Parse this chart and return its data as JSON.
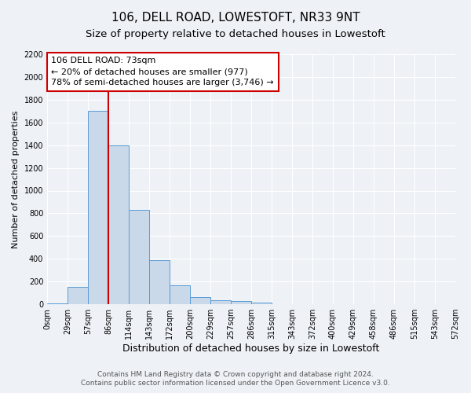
{
  "title": "106, DELL ROAD, LOWESTOFT, NR33 9NT",
  "subtitle": "Size of property relative to detached houses in Lowestoft",
  "xlabel": "Distribution of detached houses by size in Lowestoft",
  "ylabel": "Number of detached properties",
  "bar_values": [
    10,
    155,
    1700,
    1400,
    830,
    390,
    165,
    65,
    35,
    30,
    15,
    0,
    0,
    0,
    0,
    0,
    0,
    0,
    0,
    0
  ],
  "bin_labels": [
    "0sqm",
    "29sqm",
    "57sqm",
    "86sqm",
    "114sqm",
    "143sqm",
    "172sqm",
    "200sqm",
    "229sqm",
    "257sqm",
    "286sqm",
    "315sqm",
    "343sqm",
    "372sqm",
    "400sqm",
    "429sqm",
    "458sqm",
    "486sqm",
    "515sqm",
    "543sqm",
    "572sqm"
  ],
  "bar_color": "#c9d9ea",
  "bar_edge_color": "#5b9bd5",
  "vline_color": "#cc0000",
  "ylim": [
    0,
    2200
  ],
  "yticks": [
    0,
    200,
    400,
    600,
    800,
    1000,
    1200,
    1400,
    1600,
    1800,
    2000,
    2200
  ],
  "annotation_title": "106 DELL ROAD: 73sqm",
  "annotation_line1": "← 20% of detached houses are smaller (977)",
  "annotation_line2": "78% of semi-detached houses are larger (3,746) →",
  "annotation_box_color": "#ffffff",
  "annotation_box_edge": "#cc0000",
  "footer_line1": "Contains HM Land Registry data © Crown copyright and database right 2024.",
  "footer_line2": "Contains public sector information licensed under the Open Government Licence v3.0.",
  "background_color": "#eef2f7",
  "grid_color": "#ffffff",
  "title_fontsize": 11,
  "subtitle_fontsize": 9.5,
  "xlabel_fontsize": 9,
  "ylabel_fontsize": 8,
  "tick_fontsize": 7,
  "annotation_fontsize": 8,
  "footer_fontsize": 6.5,
  "vline_x_index": 3
}
